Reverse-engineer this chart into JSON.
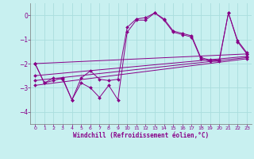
{
  "bg_color": "#c8f0f0",
  "line_color": "#880088",
  "marker_color": "#880088",
  "grid_color": "#aadddd",
  "xlabel": "Windchill (Refroidissement éolien,°C)",
  "xlim": [
    -0.5,
    23.5
  ],
  "ylim": [
    -4.5,
    0.5
  ],
  "yticks": [
    0,
    -1,
    -2,
    -3,
    -4
  ],
  "xticks": [
    0,
    1,
    2,
    3,
    4,
    5,
    6,
    7,
    8,
    9,
    10,
    11,
    12,
    13,
    14,
    15,
    16,
    17,
    18,
    19,
    20,
    21,
    22,
    23
  ],
  "series": [
    [
      [
        0,
        -2.0
      ],
      [
        1,
        -2.8
      ],
      [
        2,
        -2.7
      ],
      [
        3,
        -2.6
      ],
      [
        4,
        -3.5
      ],
      [
        5,
        -2.8
      ],
      [
        6,
        -3.0
      ],
      [
        7,
        -3.4
      ],
      [
        8,
        -2.9
      ],
      [
        9,
        -3.5
      ],
      [
        10,
        -0.7
      ],
      [
        11,
        -0.2
      ],
      [
        12,
        -0.2
      ],
      [
        13,
        0.1
      ],
      [
        14,
        -0.2
      ],
      [
        15,
        -0.7
      ],
      [
        16,
        -0.8
      ],
      [
        17,
        -0.9
      ],
      [
        18,
        -1.8
      ],
      [
        19,
        -1.9
      ],
      [
        20,
        -1.9
      ],
      [
        21,
        0.1
      ],
      [
        22,
        -1.1
      ],
      [
        23,
        -1.6
      ]
    ],
    [
      [
        0,
        -2.0
      ],
      [
        1,
        -2.8
      ],
      [
        2,
        -2.6
      ],
      [
        3,
        -2.65
      ],
      [
        4,
        -3.5
      ],
      [
        5,
        -2.6
      ],
      [
        6,
        -2.3
      ],
      [
        7,
        -2.65
      ],
      [
        8,
        -2.7
      ],
      [
        9,
        -2.65
      ],
      [
        10,
        -0.5
      ],
      [
        11,
        -0.15
      ],
      [
        12,
        -0.1
      ],
      [
        13,
        0.1
      ],
      [
        14,
        -0.15
      ],
      [
        15,
        -0.65
      ],
      [
        16,
        -0.75
      ],
      [
        17,
        -0.85
      ],
      [
        18,
        -1.75
      ],
      [
        19,
        -1.85
      ],
      [
        20,
        -1.85
      ],
      [
        21,
        0.1
      ],
      [
        22,
        -1.05
      ],
      [
        23,
        -1.55
      ]
    ],
    [
      [
        0,
        -2.0
      ],
      [
        23,
        -1.6
      ]
    ],
    [
      [
        0,
        -2.9
      ],
      [
        23,
        -1.8
      ]
    ],
    [
      [
        0,
        -2.7
      ],
      [
        23,
        -1.75
      ]
    ],
    [
      [
        0,
        -2.5
      ],
      [
        23,
        -1.7
      ]
    ]
  ]
}
